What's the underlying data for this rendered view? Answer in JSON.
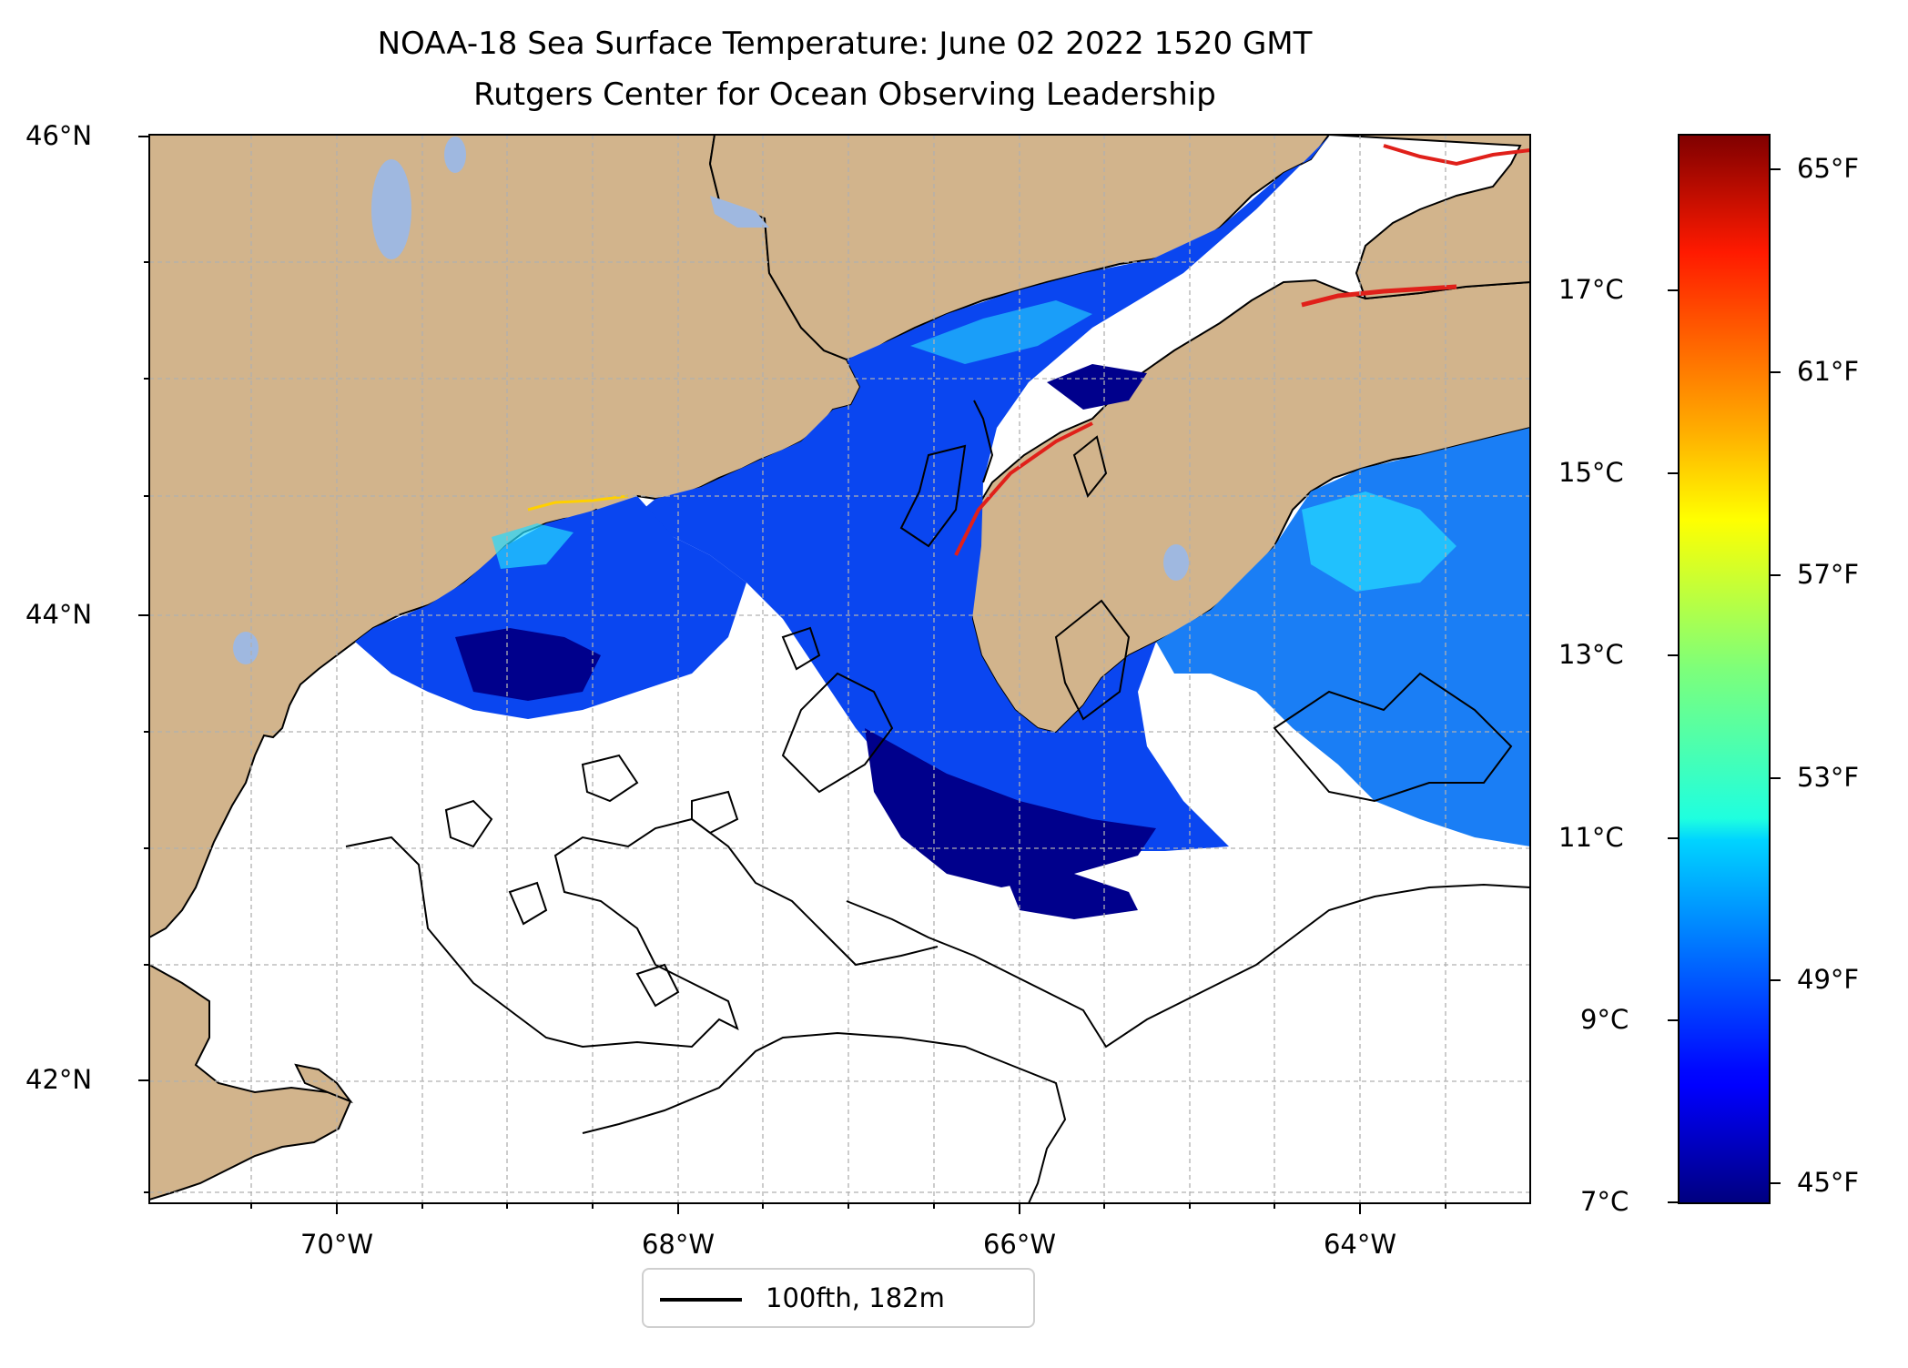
{
  "title": {
    "line1": "NOAA-18 Sea Surface Temperature: June 02 2022 1520 GMT",
    "line2": "Rutgers Center for Ocean Observing Leadership"
  },
  "axes": {
    "lat_labels": [
      "46°N",
      "44°N",
      "42°N"
    ],
    "lon_labels": [
      "70°W",
      "68°W",
      "66°W",
      "64°W"
    ]
  },
  "colorbar": {
    "celsius_labels": [
      "17°C",
      "15°C",
      "13°C",
      "11°C",
      "9°C",
      "7°C"
    ],
    "fahrenheit_labels": [
      "65°F",
      "61°F",
      "57°F",
      "53°F",
      "49°F",
      "45°F"
    ]
  },
  "legend": {
    "label": "100fth, 182m"
  },
  "colors": {
    "land": "#d2b48c",
    "lake": "#9fb8e0",
    "sst_cold": "#00008c",
    "sst_blue": "#0a46f0",
    "sst_cyan": "#24d8ff",
    "sst_warm": "#e0201a"
  },
  "chart_data": {
    "type": "heatmap",
    "title": "NOAA-18 Sea Surface Temperature: June 02 2022 1520 GMT",
    "subtitle": "Rutgers Center for Ocean Observing Leadership",
    "x_axis": {
      "label": "",
      "ticks": [
        "70°W",
        "68°W",
        "66°W",
        "64°W"
      ],
      "range_deg_w": [
        71.1,
        62.9
      ]
    },
    "y_axis": {
      "label": "",
      "ticks": [
        "42°N",
        "44°N",
        "46°N"
      ],
      "range_deg_n": [
        41.5,
        46.0
      ]
    },
    "colorbar_celsius": [
      7,
      9,
      11,
      13,
      15,
      17
    ],
    "colorbar_fahrenheit": [
      45,
      49,
      53,
      57,
      61,
      65
    ],
    "colorbar_range_celsius": [
      7,
      18.3
    ],
    "colormap": "jet",
    "contour": "100fth, 182m",
    "legend_position": "lower-center-below"
  }
}
